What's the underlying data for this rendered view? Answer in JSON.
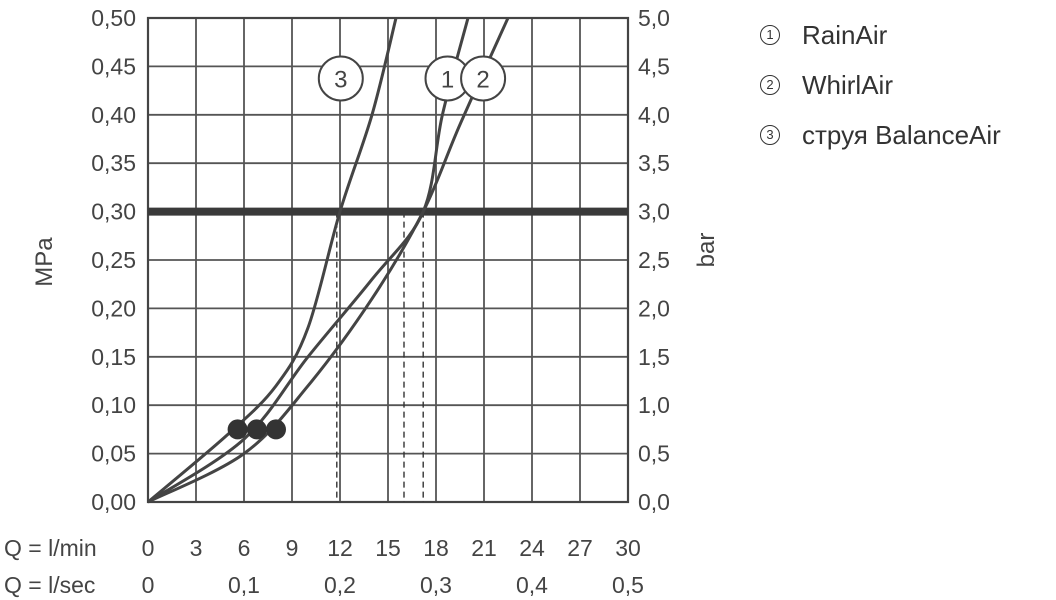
{
  "chart_data": {
    "type": "line",
    "left_axis": {
      "label": "MPa",
      "ticks": [
        "0,00",
        "0,05",
        "0,10",
        "0,15",
        "0,20",
        "0,25",
        "0,30",
        "0,35",
        "0,40",
        "0,45",
        "0,50"
      ],
      "ylim": [
        0,
        0.5
      ]
    },
    "right_axis": {
      "label": "bar",
      "ticks": [
        "0,0",
        "0,5",
        "1,0",
        "1,5",
        "2,0",
        "2,5",
        "3,0",
        "3,5",
        "4,0",
        "4,5",
        "5,0"
      ],
      "ylim": [
        0,
        5
      ]
    },
    "x_axis_lmin": {
      "label": "Q = l/min",
      "ticks": [
        "0",
        "3",
        "6",
        "9",
        "12",
        "15",
        "18",
        "21",
        "24",
        "27",
        "30"
      ],
      "xlim": [
        0,
        30
      ]
    },
    "x_axis_lsec": {
      "label": "Q = l/sec",
      "ticks": [
        "0",
        "0,1",
        "0,2",
        "0,3",
        "0,4",
        "0,5"
      ]
    },
    "grid": true,
    "reference_line": {
      "y": 0.3
    },
    "series": [
      {
        "id": "1",
        "name": "RainAir",
        "x": [
          0,
          6,
          10,
          14,
          17.2,
          18.4,
          20
        ],
        "y": [
          0,
          0.065,
          0.15,
          0.23,
          0.3,
          0.4,
          0.5
        ],
        "marker": {
          "x": 6.8,
          "y": 0.075
        },
        "drop_x": 16.0
      },
      {
        "id": "2",
        "name": "WhirlAir",
        "x": [
          0,
          6,
          10,
          14,
          17.2,
          19.5,
          22.5
        ],
        "y": [
          0,
          0.05,
          0.12,
          0.21,
          0.3,
          0.39,
          0.5
        ],
        "marker": {
          "x": 8.0,
          "y": 0.075
        },
        "drop_x": 17.2
      },
      {
        "id": "3",
        "name": "струя BalanceAir",
        "x": [
          0,
          5,
          8,
          10,
          12,
          14,
          15.5
        ],
        "y": [
          0,
          0.07,
          0.12,
          0.18,
          0.3,
          0.4,
          0.5
        ],
        "marker": {
          "x": 5.6,
          "y": 0.075
        },
        "drop_x": 11.8
      }
    ],
    "curve_labels": [
      {
        "text": "3",
        "series": "3"
      },
      {
        "text": "1",
        "series": "1"
      },
      {
        "text": "2",
        "series": "2"
      }
    ]
  },
  "legend": {
    "items": [
      {
        "num": "1",
        "label": "RainAir"
      },
      {
        "num": "2",
        "label": "WhirlAir"
      },
      {
        "num": "3",
        "label": "струя BalanceAir"
      }
    ]
  }
}
